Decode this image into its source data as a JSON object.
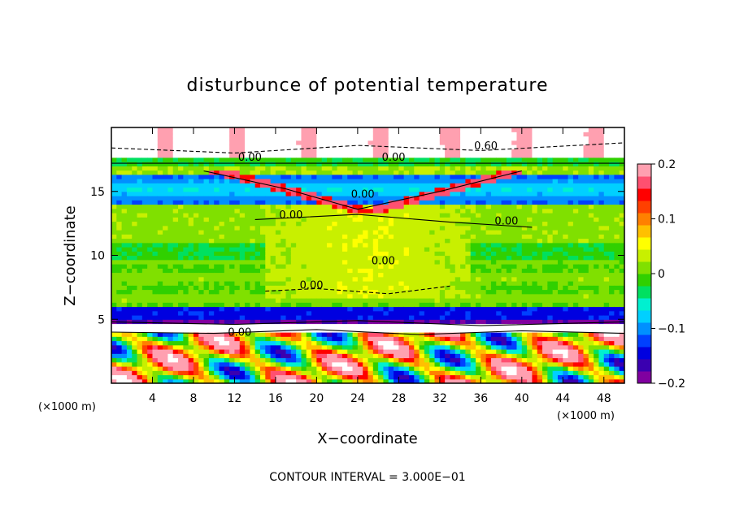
{
  "chart_data": {
    "type": "heatmap",
    "title": "disturbunce of potential temperature",
    "xlabel": "X−coordinate",
    "ylabel": "Z−coordinate",
    "x_unit_label": "(×1000 m)",
    "z_unit_label": "(×1000 m)",
    "xlim": [
      0,
      50
    ],
    "ylim": [
      0,
      20
    ],
    "x_ticks": [
      4,
      8,
      12,
      16,
      20,
      24,
      28,
      32,
      36,
      40,
      44,
      48
    ],
    "x_tick_labels": [
      "4",
      "8",
      "12",
      "16",
      "20",
      "24",
      "28",
      "32",
      "36",
      "40",
      "44",
      "48"
    ],
    "y_ticks": [
      5,
      10,
      15
    ],
    "y_tick_labels": [
      "5",
      "10",
      "15"
    ],
    "colorbar": {
      "range": [
        -0.2,
        0.2
      ],
      "ticks": [
        0.2,
        0.1,
        0,
        -0.1,
        -0.2
      ],
      "tick_labels": [
        "0.2",
        "0.1",
        "0",
        "−0.1",
        "−0.2"
      ],
      "colors": [
        "#8000a0",
        "#3a00b0",
        "#0000e0",
        "#0040ff",
        "#0090ff",
        "#00d0ff",
        "#00f0d0",
        "#00e060",
        "#30d000",
        "#80e000",
        "#c8f000",
        "#ffff00",
        "#ffc000",
        "#ff8000",
        "#ff4000",
        "#ff0000",
        "#ff5070",
        "#ffa0b0"
      ]
    },
    "contour_interval_text": "CONTOUR INTERVAL = 3.000E−01",
    "contour_labels": [
      {
        "text": "0.00",
        "x": 13.5,
        "z": 17.4
      },
      {
        "text": "0.00",
        "x": 27.5,
        "z": 17.4
      },
      {
        "text": "0.60",
        "x": 36.5,
        "z": 18.3
      },
      {
        "text": "0.00",
        "x": 24.5,
        "z": 14.5
      },
      {
        "text": "0.00",
        "x": 17.5,
        "z": 12.9
      },
      {
        "text": "0.00",
        "x": 38.5,
        "z": 12.4
      },
      {
        "text": "0.00",
        "x": 26.5,
        "z": 9.3
      },
      {
        "text": "0.00",
        "x": 19.5,
        "z": 7.4
      },
      {
        "text": "0.00",
        "x": 12.5,
        "z": 3.7
      }
    ]
  }
}
